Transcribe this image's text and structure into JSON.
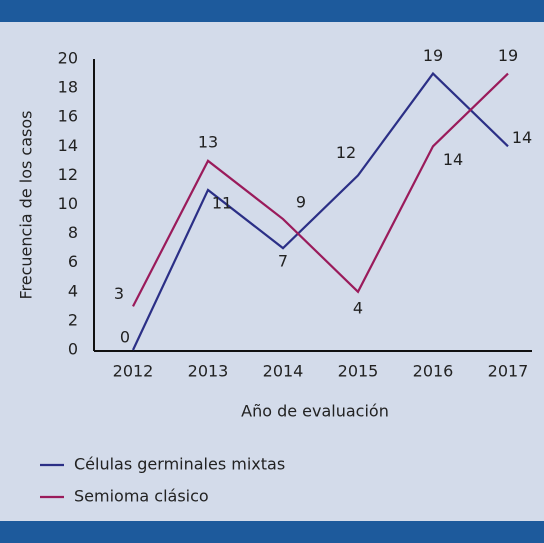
{
  "chart_data": {
    "type": "line",
    "x_label": "Año de evaluación",
    "y_label": "Frecuencia de los casos",
    "categories": [
      "2012",
      "2013",
      "2014",
      "2015",
      "2016",
      "2017"
    ],
    "series": [
      {
        "name": "Células germinales mixtas",
        "color": "#2b2f86",
        "values": [
          0,
          11,
          7,
          12,
          19,
          14
        ]
      },
      {
        "name": "Semioma clásico",
        "color": "#9a1b5b",
        "values": [
          3,
          13,
          9,
          4,
          14,
          19
        ]
      }
    ],
    "ylim": [
      0,
      20
    ],
    "yticks": [
      0,
      2,
      4,
      6,
      8,
      10,
      12,
      14,
      16,
      18,
      20
    ],
    "legend": "bottom-left"
  }
}
